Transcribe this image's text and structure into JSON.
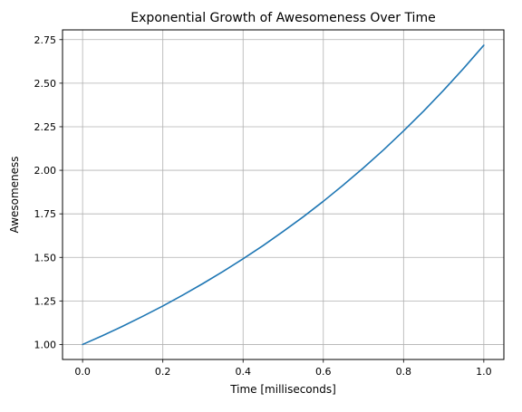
{
  "chart_data": {
    "type": "line",
    "title": "Exponential Growth of Awesomeness Over Time",
    "xlabel": "Time [milliseconds]",
    "ylabel": "Awesomeness",
    "xlim": [
      -0.05,
      1.05
    ],
    "ylim": [
      0.914,
      2.806
    ],
    "x_ticks": [
      0.0,
      0.2,
      0.4,
      0.6,
      0.8,
      1.0
    ],
    "x_tick_labels": [
      "0.0",
      "0.2",
      "0.4",
      "0.6",
      "0.8",
      "1.0"
    ],
    "y_ticks": [
      1.0,
      1.25,
      1.5,
      1.75,
      2.0,
      2.25,
      2.5,
      2.75
    ],
    "y_tick_labels": [
      "1.00",
      "1.25",
      "1.50",
      "1.75",
      "2.00",
      "2.25",
      "2.50",
      "2.75"
    ],
    "grid": true,
    "series": [
      {
        "color": "#1f77b4",
        "x": [
          0.0,
          0.05,
          0.1,
          0.15,
          0.2,
          0.25,
          0.3,
          0.35,
          0.4,
          0.45,
          0.5,
          0.55,
          0.6,
          0.65,
          0.7,
          0.75,
          0.8,
          0.85,
          0.9,
          0.95,
          1.0
        ],
        "y": [
          1.0,
          1.051,
          1.105,
          1.162,
          1.221,
          1.284,
          1.35,
          1.419,
          1.492,
          1.568,
          1.649,
          1.733,
          1.822,
          1.916,
          2.014,
          2.117,
          2.226,
          2.34,
          2.46,
          2.586,
          2.718
        ]
      }
    ]
  }
}
